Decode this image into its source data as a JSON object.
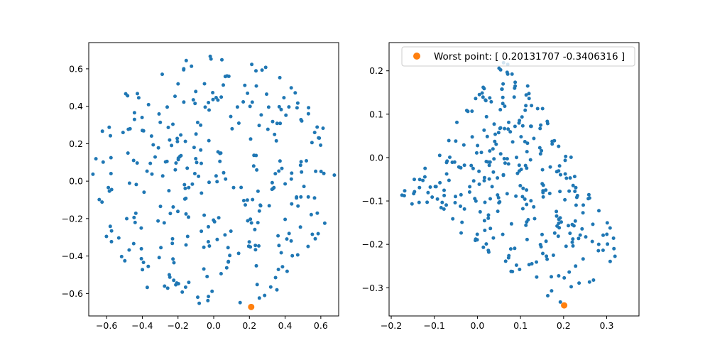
{
  "chart_data": [
    {
      "type": "scatter",
      "xlim": [
        -0.7,
        0.7
      ],
      "ylim": [
        -0.72,
        0.74
      ],
      "x_ticks": [
        -0.6,
        -0.4,
        -0.2,
        0.0,
        0.2,
        0.4,
        0.6
      ],
      "x_tick_labels": [
        "−0.6",
        "−0.4",
        "−0.2",
        "0.0",
        "0.2",
        "0.4",
        "0.6"
      ],
      "y_ticks": [
        -0.6,
        -0.4,
        -0.2,
        0.0,
        0.2,
        0.4,
        0.6
      ],
      "y_tick_labels": [
        "−0.6",
        "−0.4",
        "−0.2",
        "0.0",
        "0.2",
        "0.4",
        "0.6"
      ],
      "grid": false,
      "series_count": 315,
      "series_distribution": "uniform random points filling a disc of radius ~0.68 centred at the origin",
      "highlight": {
        "x": 0.20131707,
        "y": -0.3406316,
        "plotted_at": [
          0.21,
          -0.672
        ],
        "color": "#ff7f0e"
      },
      "point_color": "#1f77b4"
    },
    {
      "type": "scatter",
      "xlim": [
        -0.205,
        0.375
      ],
      "ylim": [
        -0.365,
        0.265
      ],
      "x_ticks": [
        -0.2,
        -0.1,
        0.0,
        0.1,
        0.2,
        0.3
      ],
      "x_tick_labels": [
        "−0.2",
        "−0.1",
        "0.0",
        "0.1",
        "0.2",
        "0.3"
      ],
      "y_ticks": [
        -0.3,
        -0.2,
        -0.1,
        0.0,
        0.1,
        0.2
      ],
      "y_tick_labels": [
        "−0.3",
        "−0.2",
        "−0.1",
        "0.0",
        "0.1",
        "0.2"
      ],
      "grid": false,
      "series_count": 315,
      "series_distribution": "triangular cloud: apex near (0.08, 0.25), base corners near (-0.18, -0.09) and (0.34, -0.22), bottom near (0.2, -0.34)",
      "highlight": {
        "x": 0.20131707,
        "y": -0.3406316,
        "color": "#ff7f0e"
      },
      "point_color": "#1f77b4",
      "legend": {
        "label": "Worst point: [ 0.20131707 -0.3406316 ]",
        "loc": "upper right"
      }
    }
  ]
}
